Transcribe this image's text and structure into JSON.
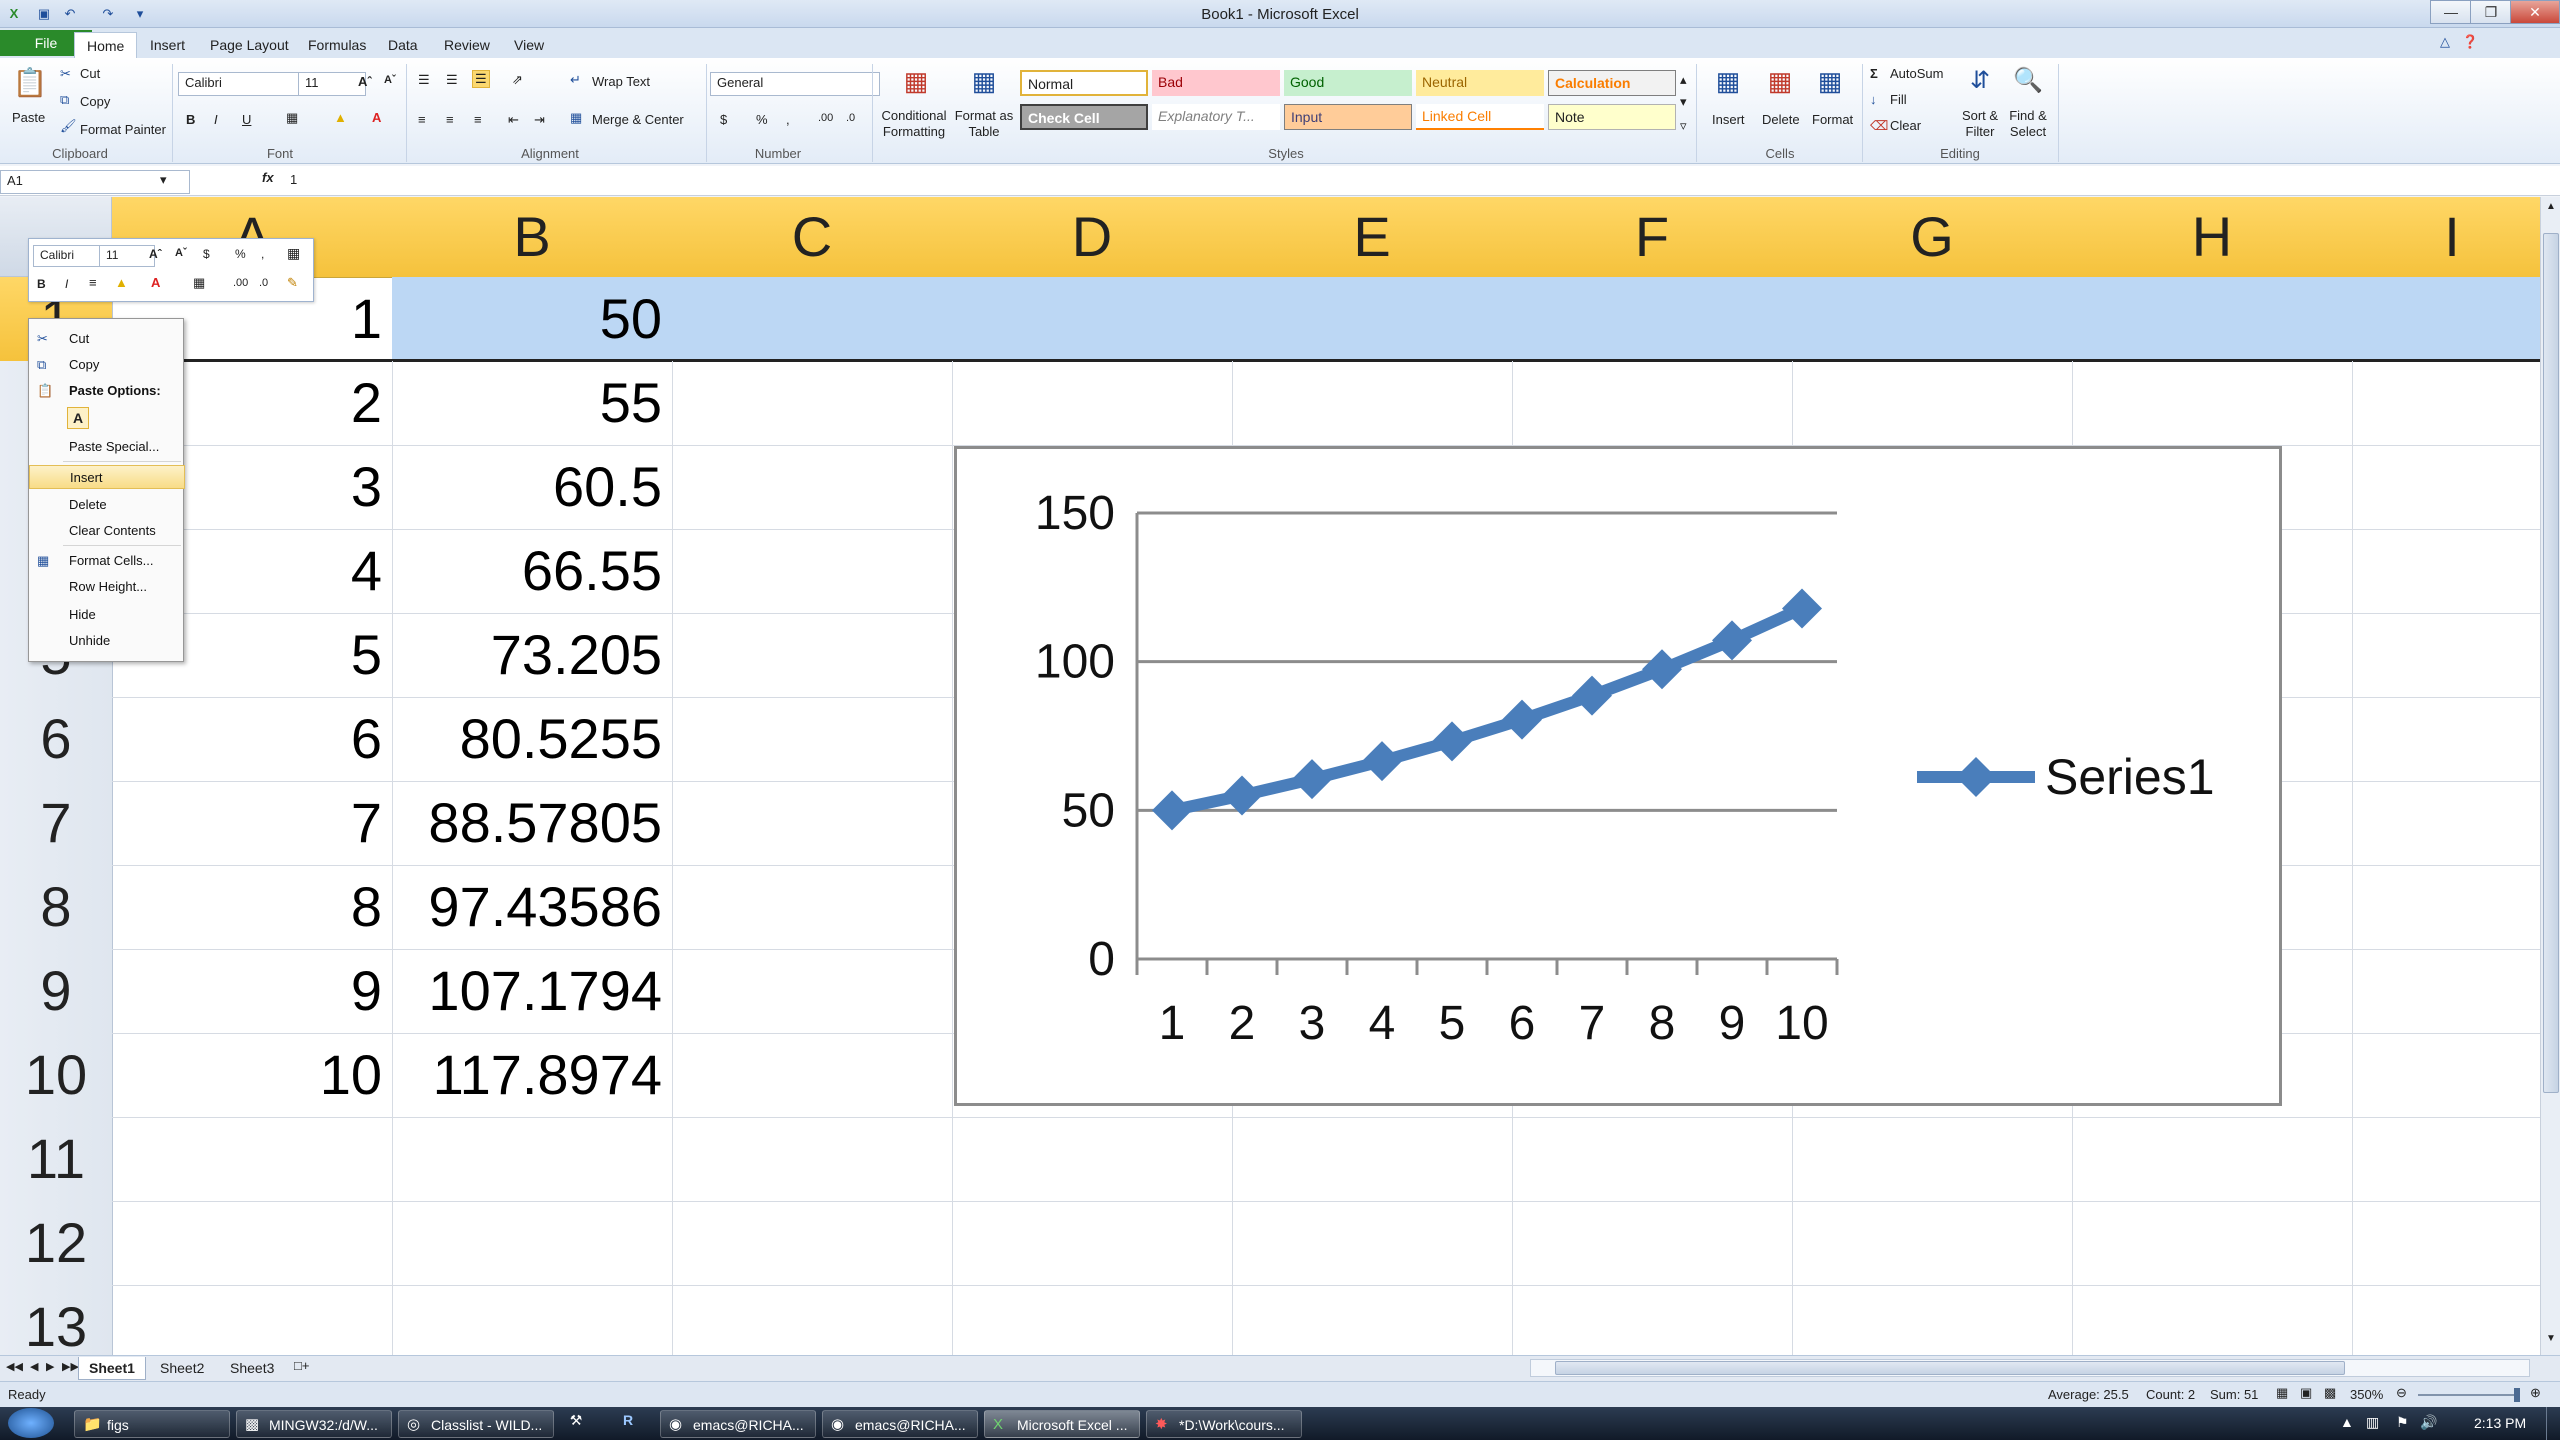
{
  "window": {
    "title": "Book1 - Microsoft Excel"
  },
  "colors": {
    "series": "#4a7ebb",
    "header_gold": "#f5c23c",
    "selected_row": "#bcd7f4",
    "file_tab": "#2a8a2a"
  },
  "tabs": [
    "File",
    "Home",
    "Insert",
    "Page Layout",
    "Formulas",
    "Data",
    "Review",
    "View"
  ],
  "ribbon": {
    "clipboard": {
      "paste": "Paste",
      "cut": "Cut",
      "copy": "Copy",
      "format_painter": "Format Painter",
      "label": "Clipboard"
    },
    "font": {
      "name": "Calibri",
      "size": "11",
      "label": "Font"
    },
    "alignment": {
      "wrap_text": "Wrap Text",
      "merge_center": "Merge & Center",
      "label": "Alignment"
    },
    "number": {
      "format": "General",
      "label": "Number"
    },
    "styles": {
      "conditional": "Conditional Formatting",
      "format_table": "Format as Table",
      "normal": "Normal",
      "bad": "Bad",
      "good": "Good",
      "neutral": "Neutral",
      "calculation": "Calculation",
      "check_cell": "Check Cell",
      "explanatory": "Explanatory T...",
      "input": "Input",
      "linked_cell": "Linked Cell",
      "note": "Note",
      "label": "Styles"
    },
    "cells": {
      "insert": "Insert",
      "delete": "Delete",
      "format": "Format",
      "label": "Cells"
    },
    "editing": {
      "autosum": "AutoSum",
      "fill": "Fill",
      "clear": "Clear",
      "sort_filter": "Sort & Filter",
      "find_select": "Find & Select",
      "label": "Editing"
    }
  },
  "formula_bar": {
    "name_box": "A1",
    "fx": "fx",
    "value": "1"
  },
  "columns": [
    "A",
    "B",
    "C",
    "D",
    "E",
    "F",
    "G",
    "H",
    "I"
  ],
  "rows": [
    {
      "num": "1",
      "a": "1",
      "b": "50"
    },
    {
      "num": "2",
      "a": "2",
      "b": "55"
    },
    {
      "num": "3",
      "a": "3",
      "b": "60.5"
    },
    {
      "num": "4",
      "a": "4",
      "b": "66.55"
    },
    {
      "num": "5",
      "a": "5",
      "b": "73.205"
    },
    {
      "num": "6",
      "a": "6",
      "b": "80.5255"
    },
    {
      "num": "7",
      "a": "7",
      "b": "88.57805"
    },
    {
      "num": "8",
      "a": "8",
      "b": "97.43586"
    },
    {
      "num": "9",
      "a": "9",
      "b": "107.1794"
    },
    {
      "num": "10",
      "a": "10",
      "b": "117.8974"
    },
    {
      "num": "11",
      "a": "",
      "b": ""
    },
    {
      "num": "12",
      "a": "",
      "b": ""
    },
    {
      "num": "13",
      "a": "",
      "b": ""
    }
  ],
  "mini_toolbar": {
    "font": "Calibri",
    "size": "11"
  },
  "context_menu": {
    "cut": "Cut",
    "copy": "Copy",
    "paste_options": "Paste Options:",
    "paste_a": "A",
    "paste_special": "Paste Special...",
    "insert": "Insert",
    "delete": "Delete",
    "clear_contents": "Clear Contents",
    "format_cells": "Format Cells...",
    "row_height": "Row Height...",
    "hide": "Hide",
    "unhide": "Unhide"
  },
  "chart_data": {
    "type": "line",
    "categories": [
      "1",
      "2",
      "3",
      "4",
      "5",
      "6",
      "7",
      "8",
      "9",
      "10"
    ],
    "series": [
      {
        "name": "Series1",
        "values": [
          50,
          55,
          60.5,
          66.55,
          73.205,
          80.5255,
          88.57805,
          97.43586,
          107.1794,
          117.8974
        ]
      }
    ],
    "yticks": [
      "0",
      "50",
      "100",
      "150"
    ],
    "ylim": [
      0,
      150
    ],
    "grid": true,
    "legend": "right",
    "title": "",
    "xlabel": "",
    "ylabel": ""
  },
  "sheets": [
    "Sheet1",
    "Sheet2",
    "Sheet3"
  ],
  "status": {
    "ready": "Ready",
    "average": "Average: 25.5",
    "count": "Count: 2",
    "sum": "Sum: 51",
    "zoom": "350%"
  },
  "taskbar": {
    "items": [
      "figs",
      "MINGW32:/d/W...",
      "Classlist - WILD...",
      "emacs@RICHA...",
      "emacs@RICHA...",
      "Microsoft Excel ...",
      "*D:\\Work\\cours..."
    ],
    "clock": "2:13 PM"
  }
}
